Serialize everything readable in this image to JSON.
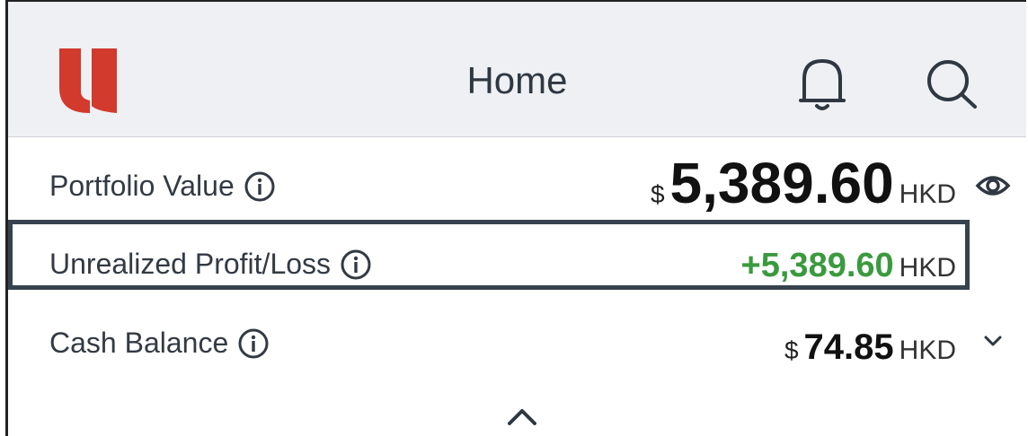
{
  "header": {
    "title": "Home"
  },
  "rows": [
    {
      "label": "Portfolio Value",
      "currency": "$",
      "amount": "5,389.60",
      "unit": "HKD"
    },
    {
      "label": "Unrealized Profit/Loss",
      "amount": "+5,389.60",
      "unit": "HKD"
    },
    {
      "label": "Cash Balance",
      "currency": "$",
      "amount": "74.85",
      "unit": "HKD"
    }
  ]
}
